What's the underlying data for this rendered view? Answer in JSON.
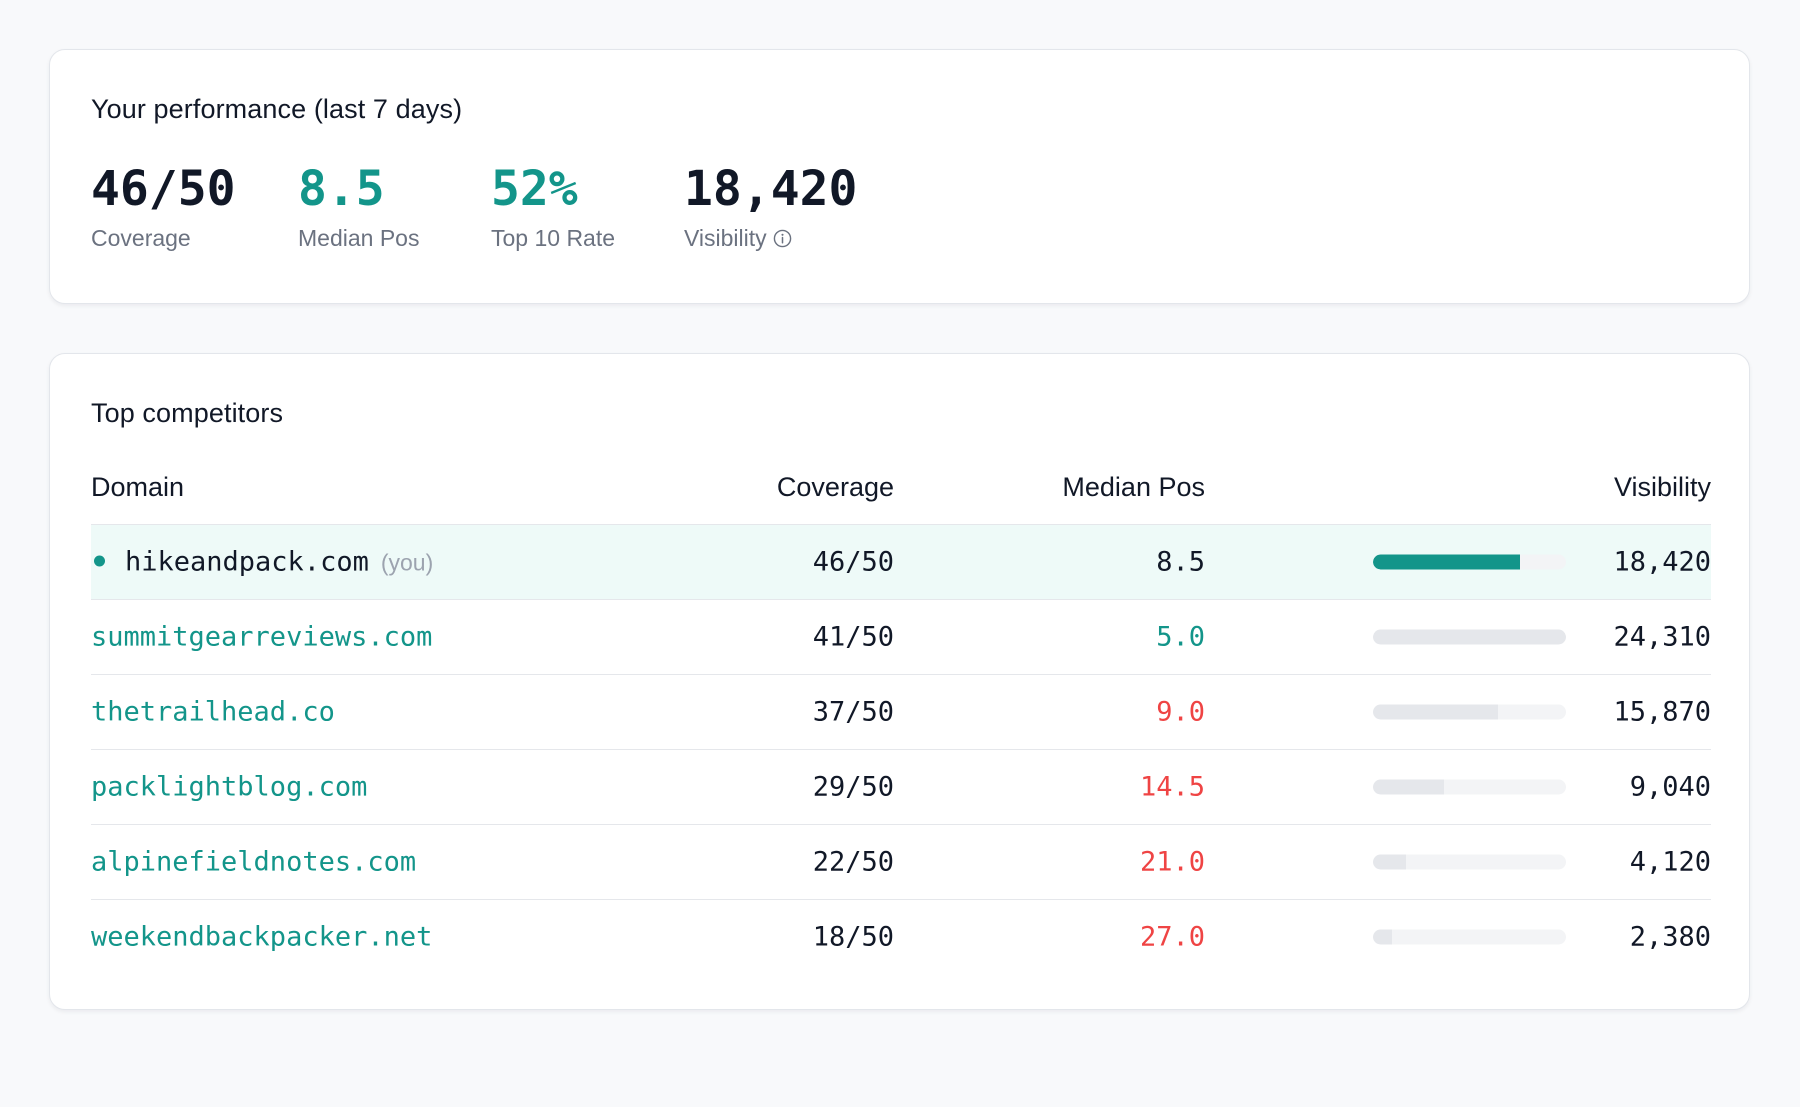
{
  "performance": {
    "title": "Your performance (last 7 days)",
    "metrics": [
      {
        "value": "46/50",
        "label": "Coverage",
        "accent": false
      },
      {
        "value": "8.5",
        "label": "Median Pos",
        "accent": true
      },
      {
        "value": "52%",
        "label": "Top 10 Rate",
        "accent": true
      },
      {
        "value": "18,420",
        "label": "Visibility",
        "accent": false,
        "icon": "info-icon"
      }
    ]
  },
  "competitors": {
    "title": "Top competitors",
    "columns": {
      "domain": "Domain",
      "coverage": "Coverage",
      "median_pos": "Median Pos",
      "visibility": "Visibility"
    },
    "you_label": "(you)",
    "rows": [
      {
        "domain": "hikeandpack.com",
        "is_you": true,
        "coverage": "46/50",
        "median_pos": "8.5",
        "median_status": "neutral",
        "visibility": "18,420",
        "visibility_fill": 0.76
      },
      {
        "domain": "summitgearreviews.com",
        "is_you": false,
        "coverage": "41/50",
        "median_pos": "5.0",
        "median_status": "good",
        "visibility": "24,310",
        "visibility_fill": 1.0
      },
      {
        "domain": "thetrailhead.co",
        "is_you": false,
        "coverage": "37/50",
        "median_pos": "9.0",
        "median_status": "bad",
        "visibility": "15,870",
        "visibility_fill": 0.65
      },
      {
        "domain": "packlightblog.com",
        "is_you": false,
        "coverage": "29/50",
        "median_pos": "14.5",
        "median_status": "bad",
        "visibility": "9,040",
        "visibility_fill": 0.37
      },
      {
        "domain": "alpinefieldnotes.com",
        "is_you": false,
        "coverage": "22/50",
        "median_pos": "21.0",
        "median_status": "bad",
        "visibility": "4,120",
        "visibility_fill": 0.17
      },
      {
        "domain": "weekendbackpacker.net",
        "is_you": false,
        "coverage": "18/50",
        "median_pos": "27.0",
        "median_status": "bad",
        "visibility": "2,380",
        "visibility_fill": 0.1
      }
    ]
  },
  "colors": {
    "accent": "#13958a",
    "bad": "#ef4444",
    "text": "#111827",
    "muted": "#6b7280",
    "highlight_row": "#eefaf8"
  }
}
